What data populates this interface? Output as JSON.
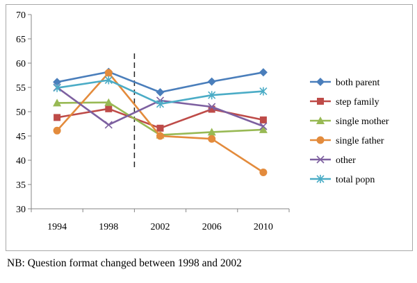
{
  "chart_data": {
    "type": "line",
    "title": "",
    "xlabel": "",
    "ylabel": "",
    "categories": [
      "1994",
      "1998",
      "2002",
      "2006",
      "2010"
    ],
    "y_ticks": [
      "30",
      "35",
      "40",
      "45",
      "50",
      "55",
      "60",
      "65",
      "70"
    ],
    "ylim": [
      30,
      70
    ],
    "grid": false,
    "legend_position": "right",
    "annotations": [
      {
        "type": "vertical-dashed-line",
        "x_between": [
          "1998",
          "2002"
        ],
        "y_range": [
          38,
          62
        ]
      }
    ],
    "series": [
      {
        "name": "both parent",
        "color": "#4a7ebb",
        "marker": "diamond",
        "values": [
          56.1,
          58.2,
          54.0,
          56.2,
          58.1
        ]
      },
      {
        "name": "step family",
        "color": "#be4b48",
        "marker": "square",
        "values": [
          48.8,
          50.6,
          46.6,
          50.5,
          48.3
        ]
      },
      {
        "name": "single mother",
        "color": "#98b954",
        "marker": "triangle",
        "values": [
          51.8,
          51.9,
          45.2,
          45.8,
          46.3
        ]
      },
      {
        "name": "single father",
        "color": "#e38b3c",
        "marker": "circle",
        "values": [
          46.1,
          58.0,
          45.0,
          44.4,
          37.5
        ]
      },
      {
        "name": "other",
        "color": "#7d60a0",
        "marker": "x",
        "values": [
          55.0,
          47.3,
          52.3,
          51.0,
          47.0
        ]
      },
      {
        "name": "total popn",
        "color": "#4bacc6",
        "marker": "star",
        "values": [
          54.9,
          56.5,
          51.6,
          53.4,
          54.2
        ]
      }
    ]
  },
  "footnote": "NB: Question format changed between 1998 and 2002"
}
